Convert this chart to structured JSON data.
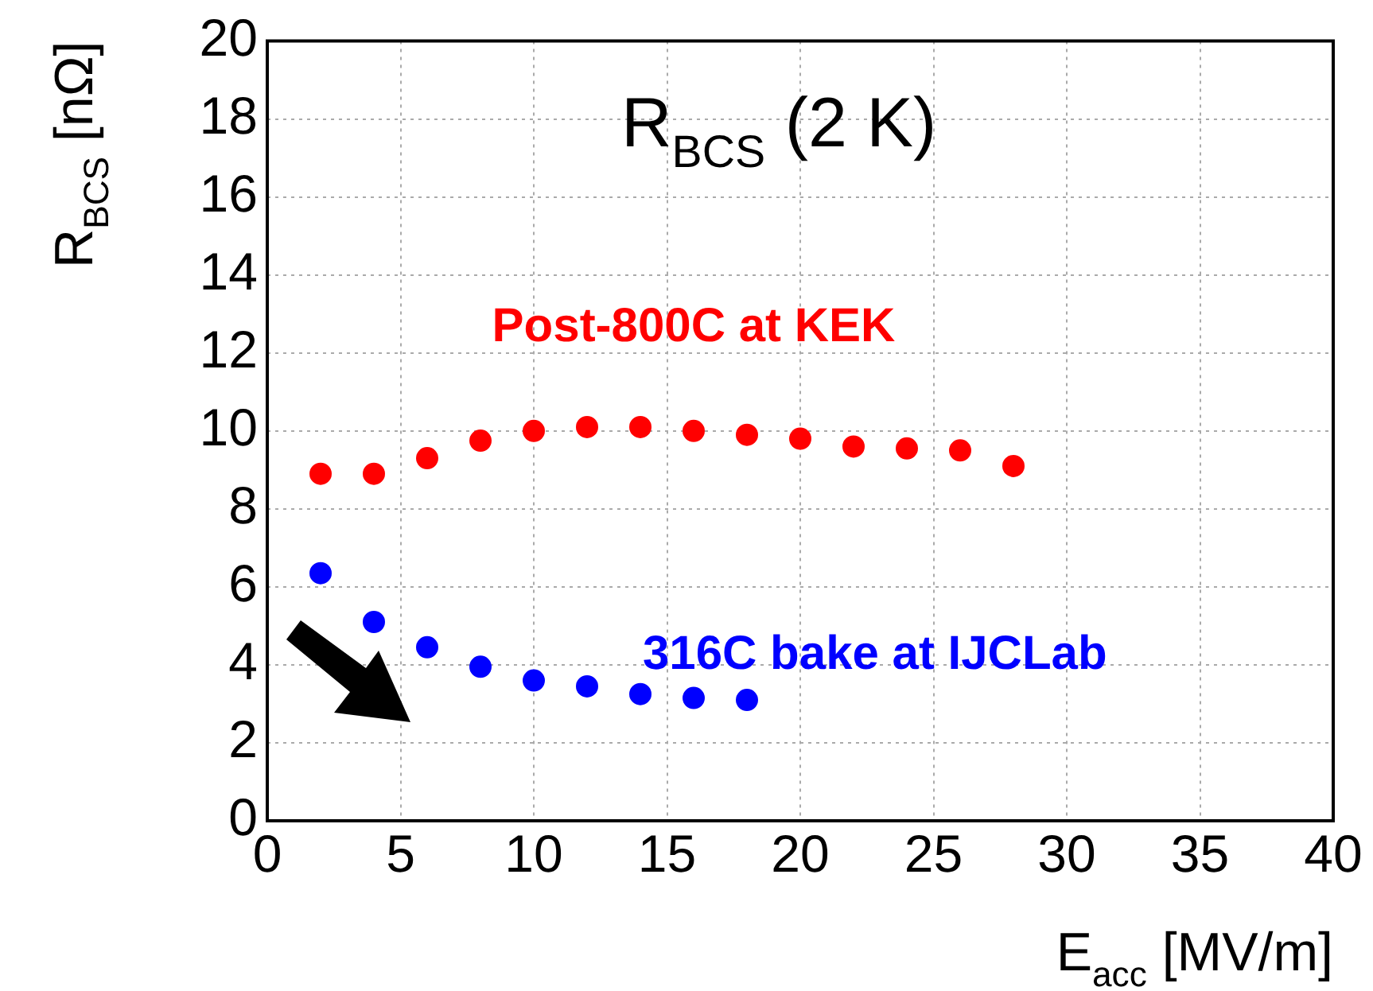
{
  "chart_data": {
    "type": "scatter",
    "title": "R$_{BCS}$ (2 K)",
    "xlabel": "E$_{acc}$ [MV/m]",
    "ylabel": "R$_{BCS}$ [nΩ]",
    "series": [
      {
        "name": "Post-800C at KEK",
        "color": "#ff0000",
        "x": [
          2,
          4,
          6,
          8,
          10,
          12,
          14,
          16,
          18,
          20,
          22,
          24,
          26,
          28
        ],
        "values": [
          8.9,
          8.9,
          9.3,
          9.75,
          10.0,
          10.1,
          10.1,
          10.0,
          9.9,
          9.8,
          9.6,
          9.55,
          9.5,
          9.1
        ]
      },
      {
        "name": "316C bake at IJCLab",
        "color": "#0000ff",
        "x": [
          2,
          4,
          6,
          8,
          10,
          12,
          14,
          16,
          18
        ],
        "values": [
          6.35,
          5.1,
          4.45,
          3.95,
          3.6,
          3.45,
          3.25,
          3.15,
          3.1
        ]
      }
    ],
    "xlim": [
      0,
      40
    ],
    "xticks": [
      0,
      5,
      10,
      15,
      20,
      25,
      30,
      35,
      40
    ],
    "ylim": [
      0,
      20
    ],
    "yticks": [
      0,
      2,
      4,
      6,
      8,
      10,
      12,
      14,
      16,
      18,
      20
    ],
    "grid": true,
    "legend": false,
    "marker": "circle"
  }
}
